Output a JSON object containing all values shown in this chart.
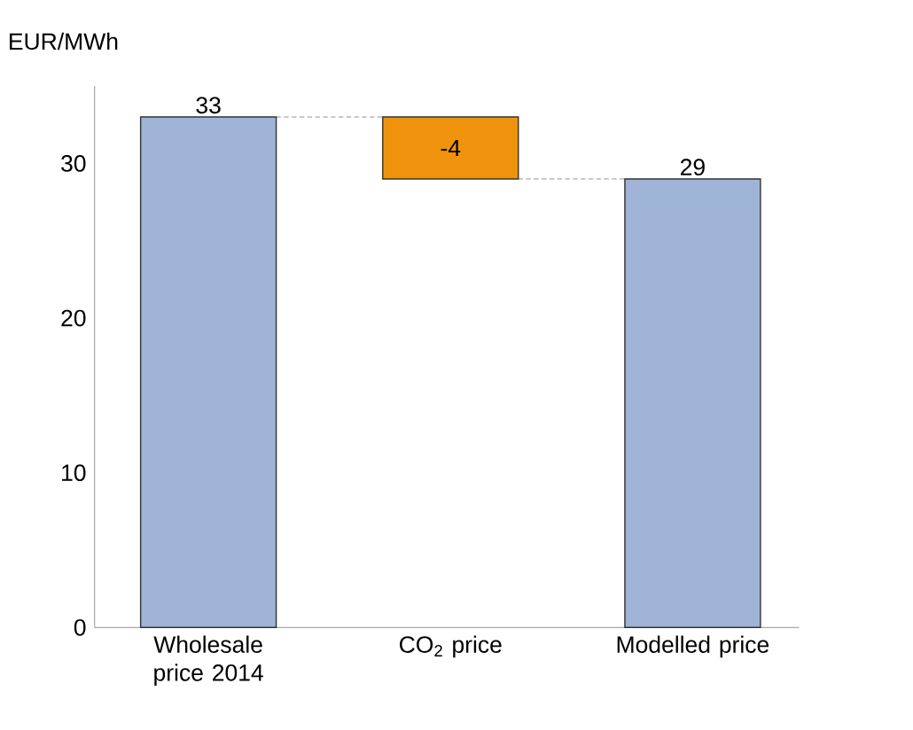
{
  "chart_data": {
    "type": "bar",
    "ylabel": "EUR/MWh",
    "categories": [
      "Wholesale price 2014",
      "CO$_{2}$ price",
      "Modelled price"
    ],
    "values": [
      33,
      -4,
      29
    ],
    "base": [
      0,
      33,
      0
    ],
    "colors": [
      "#9fb4d6",
      "#f0930c",
      "#9fb4d6"
    ],
    "ylim": [
      0,
      35
    ],
    "yticks": [
      0,
      10,
      20,
      30
    ],
    "ref_lines": [
      {
        "axis": "y",
        "value": 33,
        "line_style": "dashed",
        "color": "#666666"
      },
      {
        "axis": "y",
        "value": 29,
        "line_style": "dashed",
        "color": "#666666"
      }
    ],
    "data_labels": true
  }
}
